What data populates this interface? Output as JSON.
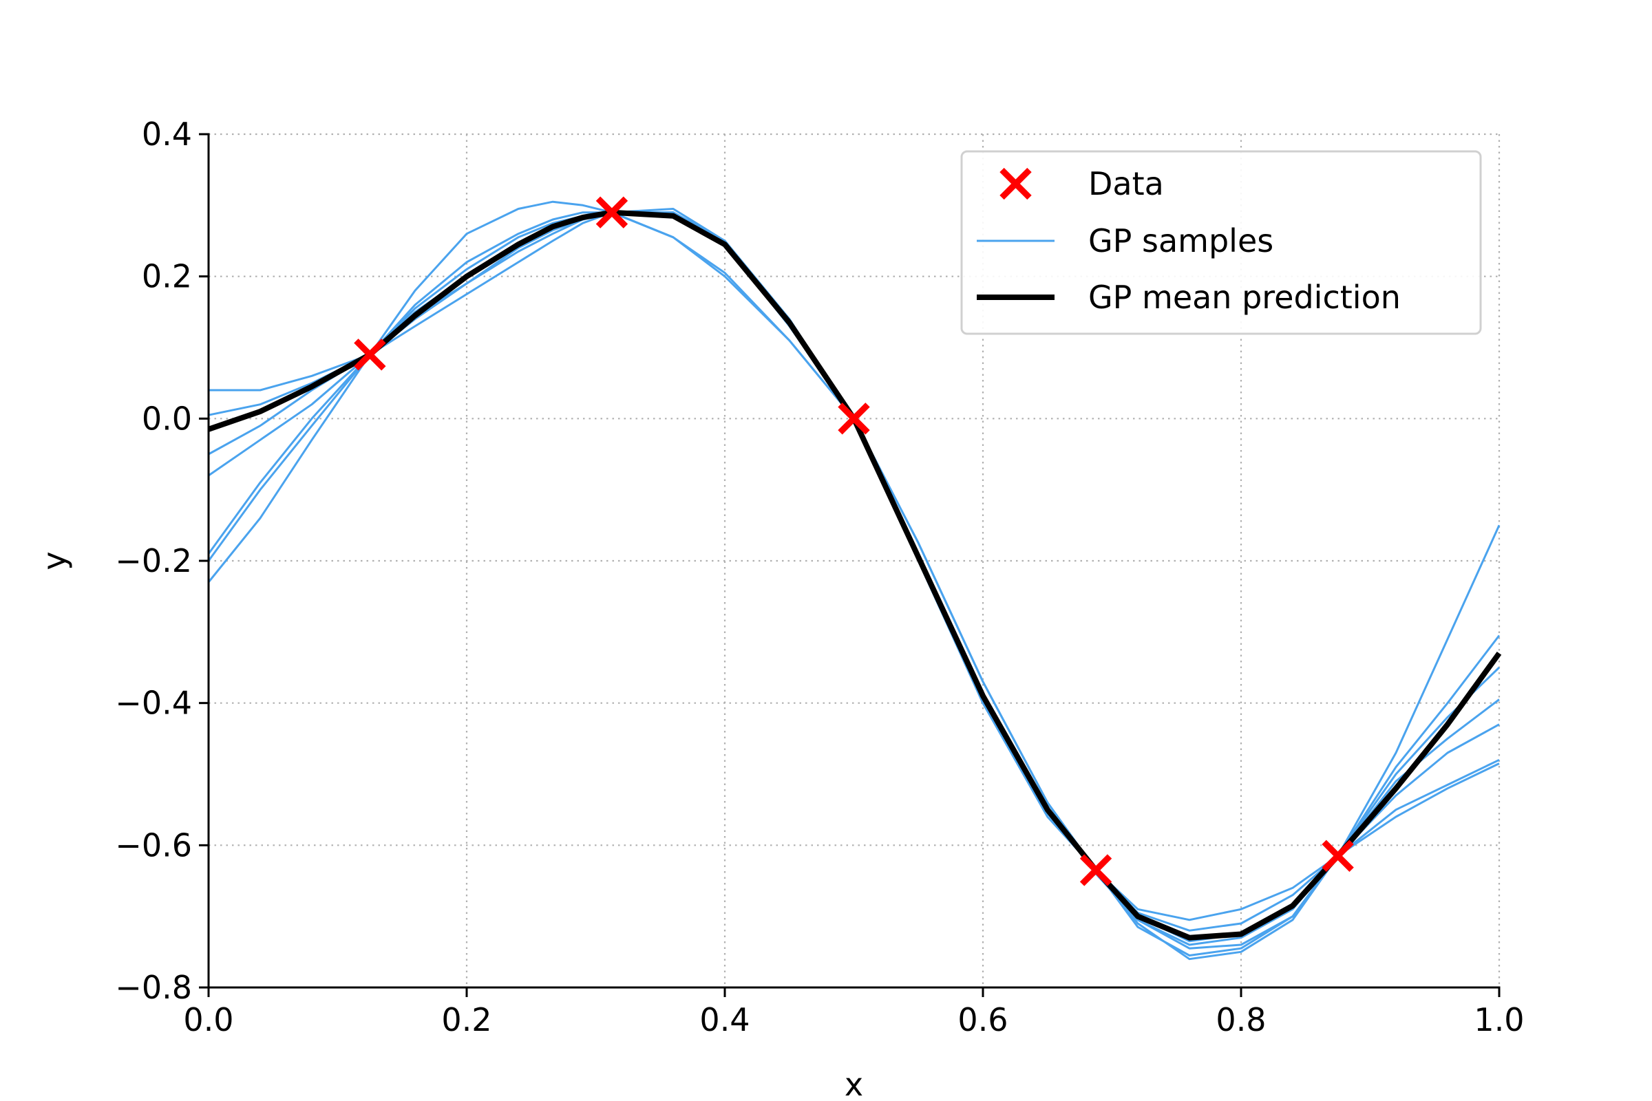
{
  "chart_data": {
    "type": "line",
    "xlabel": "x",
    "ylabel": "y",
    "xlim": [
      0.0,
      1.0
    ],
    "ylim": [
      -0.8,
      0.4
    ],
    "x_ticks": [
      0.0,
      0.2,
      0.4,
      0.6,
      0.8,
      1.0
    ],
    "x_tick_labels": [
      "0.0",
      "0.2",
      "0.4",
      "0.6",
      "0.8",
      "1.0"
    ],
    "y_ticks": [
      -0.8,
      -0.6,
      -0.4,
      -0.2,
      0.0,
      0.2,
      0.4
    ],
    "y_tick_labels": [
      "−0.8",
      "−0.6",
      "−0.4",
      "−0.2",
      "0.0",
      "0.2",
      "0.4"
    ],
    "grid": true,
    "legend_position": "top-right",
    "colors": {
      "data": "#ff0000",
      "samples": "#4aa3ee",
      "mean": "#000000"
    },
    "series": [
      {
        "name": "Data",
        "kind": "marker",
        "marker": "x",
        "x": [
          0.125,
          0.3125,
          0.5,
          0.6875,
          0.875
        ],
        "y": [
          0.09,
          0.29,
          0.0,
          -0.635,
          -0.615
        ]
      },
      {
        "name": "GP samples",
        "kind": "line",
        "samples": [
          {
            "x": [
              0.0,
              0.04,
              0.08,
              0.125,
              0.16,
              0.2,
              0.24,
              0.2667,
              0.29,
              0.3125,
              0.36,
              0.4,
              0.45,
              0.5,
              0.55,
              0.6,
              0.65,
              0.6875,
              0.72,
              0.76,
              0.8,
              0.84,
              0.875,
              0.92,
              0.96,
              1.0
            ],
            "y": [
              -0.23,
              -0.14,
              -0.03,
              0.09,
              0.18,
              0.26,
              0.295,
              0.305,
              0.3,
              0.29,
              0.285,
              0.25,
              0.14,
              0.0,
              -0.2,
              -0.39,
              -0.55,
              -0.64,
              -0.705,
              -0.745,
              -0.74,
              -0.7,
              -0.615,
              -0.47,
              -0.31,
              -0.15
            ]
          },
          {
            "x": [
              0.0,
              0.04,
              0.08,
              0.125,
              0.16,
              0.2,
              0.24,
              0.2667,
              0.29,
              0.3125,
              0.36,
              0.4,
              0.45,
              0.5,
              0.55,
              0.6,
              0.65,
              0.6875,
              0.72,
              0.76,
              0.8,
              0.84,
              0.875,
              0.92,
              0.96,
              1.0
            ],
            "y": [
              0.04,
              0.04,
              0.06,
              0.09,
              0.13,
              0.175,
              0.22,
              0.25,
              0.275,
              0.29,
              0.255,
              0.2,
              0.11,
              0.0,
              -0.175,
              -0.37,
              -0.54,
              -0.635,
              -0.69,
              -0.705,
              -0.69,
              -0.66,
              -0.615,
              -0.56,
              -0.52,
              -0.485
            ]
          },
          {
            "x": [
              0.0,
              0.04,
              0.08,
              0.125,
              0.16,
              0.2,
              0.24,
              0.2667,
              0.29,
              0.3125,
              0.36,
              0.4,
              0.45,
              0.5,
              0.55,
              0.6,
              0.65,
              0.6875,
              0.72,
              0.76,
              0.8,
              0.84,
              0.875,
              0.92,
              0.96,
              1.0
            ],
            "y": [
              -0.05,
              -0.01,
              0.04,
              0.09,
              0.15,
              0.2,
              0.245,
              0.27,
              0.285,
              0.29,
              0.29,
              0.245,
              0.13,
              0.0,
              -0.2,
              -0.4,
              -0.56,
              -0.635,
              -0.71,
              -0.76,
              -0.75,
              -0.705,
              -0.615,
              -0.5,
              -0.42,
              -0.35
            ]
          },
          {
            "x": [
              0.0,
              0.04,
              0.08,
              0.125,
              0.16,
              0.2,
              0.24,
              0.2667,
              0.29,
              0.3125,
              0.36,
              0.4,
              0.45,
              0.5,
              0.55,
              0.6,
              0.65,
              0.6875,
              0.72,
              0.76,
              0.8,
              0.84,
              0.875,
              0.92,
              0.96,
              1.0
            ],
            "y": [
              0.005,
              0.02,
              0.05,
              0.09,
              0.14,
              0.19,
              0.24,
              0.265,
              0.28,
              0.29,
              0.295,
              0.25,
              0.14,
              0.0,
              -0.2,
              -0.4,
              -0.555,
              -0.635,
              -0.7,
              -0.735,
              -0.725,
              -0.685,
              -0.615,
              -0.53,
              -0.47,
              -0.43
            ]
          },
          {
            "x": [
              0.0,
              0.04,
              0.08,
              0.125,
              0.16,
              0.2,
              0.24,
              0.2667,
              0.29,
              0.3125,
              0.36,
              0.4,
              0.45,
              0.5,
              0.55,
              0.6,
              0.65,
              0.6875,
              0.72,
              0.76,
              0.8,
              0.84,
              0.875,
              0.92,
              0.96,
              1.0
            ],
            "y": [
              -0.2,
              -0.1,
              -0.01,
              0.09,
              0.16,
              0.22,
              0.26,
              0.28,
              0.29,
              0.29,
              0.29,
              0.25,
              0.135,
              0.0,
              -0.2,
              -0.4,
              -0.555,
              -0.635,
              -0.715,
              -0.755,
              -0.745,
              -0.7,
              -0.615,
              -0.49,
              -0.4,
              -0.305
            ]
          },
          {
            "x": [
              0.0,
              0.04,
              0.08,
              0.125,
              0.16,
              0.2,
              0.24,
              0.2667,
              0.29,
              0.3125,
              0.36,
              0.4,
              0.45,
              0.5,
              0.55,
              0.6,
              0.65,
              0.6875,
              0.72,
              0.76,
              0.8,
              0.84,
              0.875,
              0.92,
              0.96,
              1.0
            ],
            "y": [
              -0.08,
              -0.03,
              0.02,
              0.09,
              0.155,
              0.21,
              0.255,
              0.275,
              0.285,
              0.29,
              0.29,
              0.25,
              0.14,
              0.0,
              -0.2,
              -0.395,
              -0.555,
              -0.635,
              -0.705,
              -0.74,
              -0.73,
              -0.69,
              -0.615,
              -0.51,
              -0.45,
              -0.395
            ]
          },
          {
            "x": [
              0.0,
              0.04,
              0.08,
              0.125,
              0.16,
              0.2,
              0.24,
              0.2667,
              0.29,
              0.3125,
              0.36,
              0.4,
              0.45,
              0.5,
              0.55,
              0.6,
              0.65,
              0.6875,
              0.72,
              0.76,
              0.8,
              0.84,
              0.875,
              0.92,
              0.96,
              1.0
            ],
            "y": [
              -0.19,
              -0.09,
              0.0,
              0.09,
              0.145,
              0.19,
              0.235,
              0.26,
              0.28,
              0.29,
              0.255,
              0.205,
              0.11,
              0.0,
              -0.175,
              -0.37,
              -0.54,
              -0.635,
              -0.695,
              -0.72,
              -0.71,
              -0.67,
              -0.615,
              -0.55,
              -0.515,
              -0.48
            ]
          }
        ]
      },
      {
        "name": "GP mean prediction",
        "kind": "line",
        "x": [
          0.0,
          0.04,
          0.08,
          0.125,
          0.16,
          0.2,
          0.24,
          0.2667,
          0.29,
          0.3125,
          0.36,
          0.4,
          0.45,
          0.5,
          0.55,
          0.6,
          0.65,
          0.6875,
          0.72,
          0.76,
          0.8,
          0.84,
          0.875,
          0.92,
          0.96,
          1.0
        ],
        "y": [
          -0.015,
          0.01,
          0.045,
          0.09,
          0.145,
          0.2,
          0.245,
          0.27,
          0.283,
          0.29,
          0.285,
          0.245,
          0.135,
          0.0,
          -0.195,
          -0.39,
          -0.55,
          -0.635,
          -0.7,
          -0.73,
          -0.725,
          -0.685,
          -0.615,
          -0.52,
          -0.43,
          -0.33
        ]
      }
    ]
  }
}
